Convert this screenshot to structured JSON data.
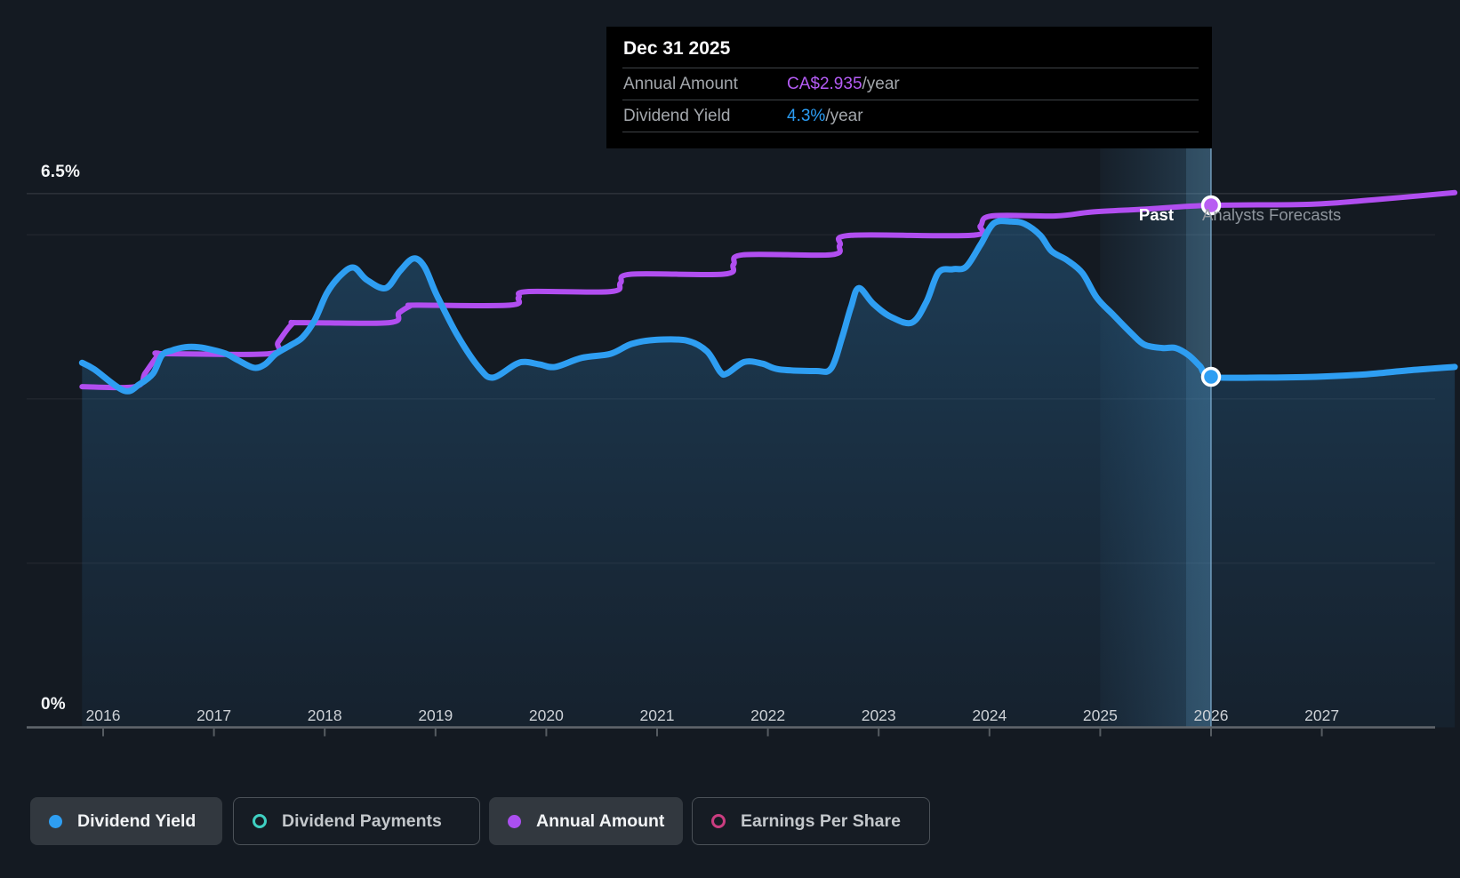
{
  "tooltip": {
    "date": "Dec 31 2025",
    "rows": [
      {
        "label": "Annual Amount",
        "value": "CA$2.935",
        "suffix": "/year",
        "color": "#b45cf5"
      },
      {
        "label": "Dividend Yield",
        "value": "4.3%",
        "suffix": "/year",
        "color": "#2b9df4"
      }
    ]
  },
  "annotations": {
    "past": "Past",
    "forecast": "Analysts Forecasts"
  },
  "axis": {
    "y_top_label": "6.5%",
    "y_bottom_label": "0%",
    "years": [
      "2016",
      "2017",
      "2018",
      "2019",
      "2020",
      "2021",
      "2022",
      "2023",
      "2024",
      "2025",
      "2026",
      "2027"
    ]
  },
  "legend": {
    "items": [
      {
        "label": "Dividend Yield",
        "color": "#2e9ef2",
        "style": "filled",
        "active": true
      },
      {
        "label": "Dividend Payments",
        "color": "#3fd0c2",
        "style": "ring",
        "active": false
      },
      {
        "label": "Annual Amount",
        "color": "#ab4ff0",
        "style": "filled",
        "active": true
      },
      {
        "label": "Earnings Per Share",
        "color": "#ca3d80",
        "style": "ring",
        "active": false
      }
    ]
  },
  "chart_data": {
    "type": "line",
    "x_axis": {
      "tick_years": [
        2016,
        2017,
        2018,
        2019,
        2020,
        2021,
        2022,
        2023,
        2024,
        2025,
        2026,
        2027
      ],
      "range": [
        2015.8,
        2028.2
      ]
    },
    "y_axis": {
      "unit": "%",
      "range": [
        0,
        6.5
      ],
      "top_label": "6.5%",
      "bottom_label": "0%",
      "gridlines_pct": [
        6.5,
        6,
        4,
        2
      ]
    },
    "forecast_boundary": {
      "date": "Dec 31 2025",
      "t": 2026.0,
      "highlight_band_start_t": 2025.0
    },
    "markers": [
      {
        "series": "Annual Amount",
        "t": 2026.0,
        "value": 2.935,
        "color": "#b85df2"
      },
      {
        "series": "Dividend Yield",
        "t": 2026.0,
        "value": 4.27,
        "color": "#2e9ef2"
      }
    ],
    "series": [
      {
        "name": "Dividend Yield",
        "unit": "%",
        "color": "#2e9ef2",
        "fill": true,
        "past": [
          [
            2015.81,
            4.44
          ],
          [
            2015.92,
            4.36
          ],
          [
            2016.19,
            4.1
          ],
          [
            2016.33,
            4.18
          ],
          [
            2016.45,
            4.31
          ],
          [
            2016.53,
            4.53
          ],
          [
            2016.62,
            4.59
          ],
          [
            2016.74,
            4.63
          ],
          [
            2016.86,
            4.63
          ],
          [
            2016.98,
            4.6
          ],
          [
            2017.11,
            4.55
          ],
          [
            2017.22,
            4.47
          ],
          [
            2017.36,
            4.38
          ],
          [
            2017.46,
            4.42
          ],
          [
            2017.56,
            4.55
          ],
          [
            2017.7,
            4.66
          ],
          [
            2017.8,
            4.75
          ],
          [
            2017.91,
            4.96
          ],
          [
            2018.02,
            5.29
          ],
          [
            2018.14,
            5.5
          ],
          [
            2018.26,
            5.6
          ],
          [
            2018.38,
            5.45
          ],
          [
            2018.55,
            5.35
          ],
          [
            2018.68,
            5.56
          ],
          [
            2018.8,
            5.71
          ],
          [
            2018.9,
            5.61
          ],
          [
            2019.01,
            5.27
          ],
          [
            2019.2,
            4.77
          ],
          [
            2019.4,
            4.37
          ],
          [
            2019.52,
            4.26
          ],
          [
            2019.72,
            4.42
          ],
          [
            2019.81,
            4.45
          ],
          [
            2019.94,
            4.42
          ],
          [
            2020.08,
            4.39
          ],
          [
            2020.32,
            4.5
          ],
          [
            2020.58,
            4.55
          ],
          [
            2020.77,
            4.67
          ],
          [
            2020.99,
            4.72
          ],
          [
            2021.27,
            4.71
          ],
          [
            2021.45,
            4.58
          ],
          [
            2021.57,
            4.33
          ],
          [
            2021.63,
            4.31
          ],
          [
            2021.79,
            4.45
          ],
          [
            2021.95,
            4.43
          ],
          [
            2022.1,
            4.36
          ],
          [
            2022.43,
            4.34
          ],
          [
            2022.57,
            4.37
          ],
          [
            2022.67,
            4.75
          ],
          [
            2022.75,
            5.12
          ],
          [
            2022.82,
            5.35
          ],
          [
            2022.95,
            5.16
          ],
          [
            2023.11,
            5.0
          ],
          [
            2023.3,
            4.93
          ],
          [
            2023.43,
            5.18
          ],
          [
            2023.54,
            5.54
          ],
          [
            2023.67,
            5.58
          ],
          [
            2023.79,
            5.61
          ],
          [
            2023.92,
            5.88
          ],
          [
            2024.04,
            6.14
          ],
          [
            2024.2,
            6.16
          ],
          [
            2024.32,
            6.13
          ],
          [
            2024.46,
            5.99
          ],
          [
            2024.56,
            5.8
          ],
          [
            2024.7,
            5.69
          ],
          [
            2024.84,
            5.53
          ],
          [
            2024.97,
            5.23
          ],
          [
            2025.12,
            5.02
          ],
          [
            2025.28,
            4.8
          ],
          [
            2025.4,
            4.66
          ],
          [
            2025.56,
            4.62
          ],
          [
            2025.68,
            4.62
          ],
          [
            2025.8,
            4.53
          ],
          [
            2025.9,
            4.4
          ],
          [
            2026.0,
            4.27
          ]
        ],
        "forecast": [
          [
            2026.45,
            4.26
          ],
          [
            2026.95,
            4.27
          ],
          [
            2027.4,
            4.3
          ],
          [
            2027.8,
            4.35
          ],
          [
            2028.2,
            4.39
          ]
        ]
      },
      {
        "name": "Annual Amount",
        "unit": "CA$",
        "color": "#b14ef0",
        "fill": false,
        "past": [
          [
            2015.81,
            2.0
          ],
          [
            2016.29,
            2.0
          ],
          [
            2016.38,
            2.07
          ],
          [
            2016.5,
            2.165
          ],
          [
            2016.55,
            2.17
          ],
          [
            2017.5,
            2.17
          ],
          [
            2017.58,
            2.23
          ],
          [
            2017.7,
            2.32
          ],
          [
            2017.78,
            2.33
          ],
          [
            2018.58,
            2.33
          ],
          [
            2018.67,
            2.38
          ],
          [
            2018.77,
            2.415
          ],
          [
            2018.83,
            2.42
          ],
          [
            2019.67,
            2.42
          ],
          [
            2019.75,
            2.46
          ],
          [
            2019.83,
            2.49
          ],
          [
            2020.58,
            2.49
          ],
          [
            2020.67,
            2.535
          ],
          [
            2020.77,
            2.58
          ],
          [
            2021.6,
            2.58
          ],
          [
            2021.69,
            2.63
          ],
          [
            2021.78,
            2.68
          ],
          [
            2022.57,
            2.68
          ],
          [
            2022.65,
            2.73
          ],
          [
            2022.75,
            2.78
          ],
          [
            2023.84,
            2.78
          ],
          [
            2023.92,
            2.83
          ],
          [
            2024.02,
            2.88
          ],
          [
            2024.6,
            2.88
          ],
          [
            2024.92,
            2.9
          ],
          [
            2025.4,
            2.915
          ],
          [
            2026.0,
            2.935
          ]
        ],
        "forecast": [
          [
            2026.9,
            2.94
          ],
          [
            2027.5,
            2.965
          ],
          [
            2028.2,
            3.0
          ]
        ]
      }
    ]
  }
}
